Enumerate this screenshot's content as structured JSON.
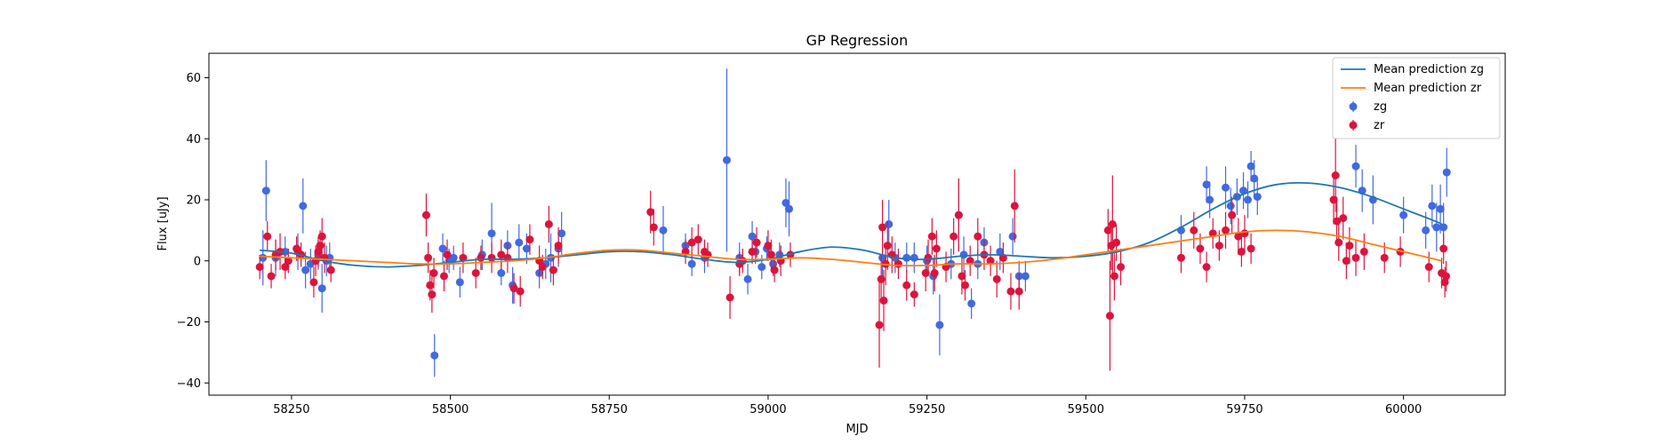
{
  "chart_data": {
    "type": "scatter",
    "title": "GP Regression",
    "xlabel": "MJD",
    "ylabel": "Flux [uJy]",
    "xlim": [
      58120,
      60160
    ],
    "ylim": [
      -44,
      68
    ],
    "x_ticks": [
      58250,
      58500,
      58750,
      59000,
      59250,
      59500,
      59750,
      60000
    ],
    "x_tick_labels": [
      "58250",
      "58500",
      "58750",
      "59000",
      "59250",
      "59500",
      "59750",
      "60000"
    ],
    "y_ticks": [
      -40,
      -20,
      0,
      20,
      40,
      60
    ],
    "y_tick_labels": [
      "−40",
      "−20",
      "0",
      "20",
      "40",
      "60"
    ],
    "grid": false,
    "legend_position": "top-right",
    "lines": [
      {
        "name": "Mean prediction zg",
        "color": "#1f77b4",
        "x": [
          58200,
          58250,
          58300,
          58350,
          58400,
          58450,
          58500,
          58550,
          58600,
          58650,
          58700,
          58750,
          58800,
          58850,
          58900,
          58950,
          59000,
          59050,
          59100,
          59150,
          59200,
          59250,
          59300,
          59350,
          59400,
          59450,
          59500,
          59550,
          59600,
          59650,
          59700,
          59750,
          59800,
          59850,
          59900,
          59950,
          60000,
          60050,
          60060
        ],
        "y": [
          3.5,
          2.5,
          0.0,
          -1.5,
          -2.0,
          -1.5,
          -0.5,
          0.5,
          0.5,
          1.0,
          2.0,
          3.0,
          3.0,
          2.0,
          0.5,
          -0.5,
          0.5,
          3.0,
          4.5,
          3.5,
          1.0,
          0.5,
          1.5,
          2.0,
          1.5,
          1.0,
          1.5,
          3.0,
          6.0,
          11.0,
          17.0,
          22.0,
          25.0,
          25.5,
          24.0,
          21.0,
          17.0,
          13.0,
          12.0
        ]
      },
      {
        "name": "Mean prediction zr",
        "color": "#ff7f0e",
        "x": [
          58200,
          58250,
          58300,
          58350,
          58400,
          58450,
          58500,
          58550,
          58600,
          58650,
          58700,
          58750,
          58800,
          58850,
          58900,
          58950,
          59000,
          59050,
          59100,
          59150,
          59200,
          59250,
          59300,
          59350,
          59400,
          59450,
          59500,
          59550,
          59600,
          59650,
          59700,
          59750,
          59800,
          59850,
          59900,
          59950,
          60000,
          60050,
          60060
        ],
        "y": [
          1.5,
          1.0,
          0.5,
          0.0,
          -0.5,
          -1.0,
          -1.0,
          -0.5,
          0.0,
          1.0,
          2.5,
          3.5,
          3.5,
          2.5,
          1.5,
          0.5,
          0.5,
          1.0,
          0.5,
          -0.5,
          -1.5,
          -1.5,
          -1.0,
          -1.0,
          -0.5,
          0.5,
          2.0,
          3.5,
          5.0,
          6.5,
          8.0,
          9.5,
          10.0,
          9.5,
          8.0,
          5.5,
          3.0,
          0.5,
          0.0
        ]
      }
    ],
    "series": [
      {
        "name": "zg",
        "color": "#4169e1",
        "points": [
          [
            58205,
            1,
            9
          ],
          [
            58210,
            23,
            10
          ],
          [
            58225,
            1,
            6
          ],
          [
            58240,
            3,
            5
          ],
          [
            58260,
            3,
            6
          ],
          [
            58268,
            18,
            9
          ],
          [
            58272,
            -3,
            6
          ],
          [
            58280,
            -1,
            5
          ],
          [
            58292,
            2,
            5
          ],
          [
            58298,
            -9,
            8
          ],
          [
            58305,
            0,
            5
          ],
          [
            58310,
            1,
            5
          ],
          [
            58475,
            -31,
            7
          ],
          [
            58488,
            4,
            5
          ],
          [
            58498,
            0,
            4
          ],
          [
            58505,
            1,
            4
          ],
          [
            58515,
            -7,
            5
          ],
          [
            58550,
            2,
            5
          ],
          [
            58565,
            9,
            10
          ],
          [
            58580,
            -4,
            4
          ],
          [
            58590,
            5,
            5
          ],
          [
            58598,
            -8,
            6
          ],
          [
            58608,
            6,
            6
          ],
          [
            58620,
            4,
            5
          ],
          [
            58640,
            -4,
            5
          ],
          [
            58650,
            -1,
            5
          ],
          [
            58658,
            1,
            8
          ],
          [
            58670,
            4,
            6
          ],
          [
            58675,
            9,
            7
          ],
          [
            58835,
            10,
            8
          ],
          [
            58870,
            5,
            4
          ],
          [
            58880,
            -1,
            4
          ],
          [
            58900,
            1,
            5
          ],
          [
            58935,
            33,
            30
          ],
          [
            58955,
            1,
            5
          ],
          [
            58968,
            -6,
            5
          ],
          [
            58975,
            8,
            5
          ],
          [
            58980,
            3,
            4
          ],
          [
            58990,
            -2,
            4
          ],
          [
            58998,
            4,
            4
          ],
          [
            59008,
            -1,
            4
          ],
          [
            59018,
            2,
            4
          ],
          [
            59028,
            19,
            8
          ],
          [
            59033,
            17,
            9
          ],
          [
            59180,
            1,
            8
          ],
          [
            59190,
            12,
            8
          ],
          [
            59200,
            1,
            5
          ],
          [
            59218,
            1,
            5
          ],
          [
            59230,
            1,
            5
          ],
          [
            59250,
            0,
            5
          ],
          [
            59260,
            -5,
            6
          ],
          [
            59270,
            -21,
            10
          ],
          [
            59288,
            -1,
            5
          ],
          [
            59300,
            15,
            12
          ],
          [
            59308,
            2,
            6
          ],
          [
            59320,
            -14,
            5
          ],
          [
            59330,
            -1,
            5
          ],
          [
            59340,
            6,
            5
          ],
          [
            59365,
            3,
            6
          ],
          [
            59385,
            8,
            6
          ],
          [
            59395,
            -5,
            5
          ],
          [
            59405,
            -5,
            5
          ],
          [
            59650,
            10,
            5
          ],
          [
            59690,
            25,
            6
          ],
          [
            59695,
            20,
            6
          ],
          [
            59720,
            24,
            7
          ],
          [
            59728,
            18,
            6
          ],
          [
            59738,
            21,
            6
          ],
          [
            59748,
            23,
            6
          ],
          [
            59755,
            20,
            6
          ],
          [
            59760,
            31,
            5
          ],
          [
            59765,
            27,
            6
          ],
          [
            59770,
            21,
            6
          ],
          [
            59925,
            31,
            7
          ],
          [
            59935,
            23,
            7
          ],
          [
            59952,
            20,
            8
          ],
          [
            60000,
            15,
            6
          ],
          [
            60035,
            10,
            6
          ],
          [
            60045,
            18,
            7
          ],
          [
            60052,
            11,
            8
          ],
          [
            60058,
            17,
            8
          ],
          [
            60063,
            11,
            8
          ],
          [
            60068,
            29,
            8
          ]
        ]
      },
      {
        "name": "zr",
        "color": "#dc143c",
        "points": [
          [
            58200,
            -2,
            4
          ],
          [
            58212,
            8,
            5
          ],
          [
            58218,
            -5,
            4
          ],
          [
            58225,
            2,
            5
          ],
          [
            58232,
            3,
            6
          ],
          [
            58240,
            -2,
            4
          ],
          [
            58245,
            0,
            4
          ],
          [
            58258,
            4,
            4
          ],
          [
            58265,
            2,
            4
          ],
          [
            58285,
            -7,
            5
          ],
          [
            58288,
            0,
            5
          ],
          [
            58292,
            3,
            5
          ],
          [
            58295,
            5,
            5
          ],
          [
            58298,
            8,
            6
          ],
          [
            58302,
            1,
            5
          ],
          [
            58312,
            -3,
            4
          ],
          [
            58462,
            15,
            7
          ],
          [
            58465,
            1,
            5
          ],
          [
            58468,
            -8,
            5
          ],
          [
            58471,
            -11,
            6
          ],
          [
            58474,
            -4,
            5
          ],
          [
            58490,
            -5,
            5
          ],
          [
            58495,
            2,
            5
          ],
          [
            58520,
            1,
            5
          ],
          [
            58540,
            -4,
            5
          ],
          [
            58548,
            1,
            4
          ],
          [
            58565,
            1,
            5
          ],
          [
            58580,
            2,
            5
          ],
          [
            58590,
            1,
            5
          ],
          [
            58600,
            -9,
            5
          ],
          [
            58610,
            -10,
            5
          ],
          [
            58625,
            7,
            5
          ],
          [
            58640,
            0,
            5
          ],
          [
            58645,
            -2,
            4
          ],
          [
            58655,
            12,
            6
          ],
          [
            58662,
            -3,
            5
          ],
          [
            58670,
            5,
            6
          ],
          [
            58815,
            16,
            7
          ],
          [
            58820,
            11,
            6
          ],
          [
            58870,
            3,
            4
          ],
          [
            58880,
            6,
            5
          ],
          [
            58890,
            7,
            5
          ],
          [
            58900,
            3,
            4
          ],
          [
            58905,
            2,
            4
          ],
          [
            58940,
            -12,
            7
          ],
          [
            58955,
            -1,
            4
          ],
          [
            58960,
            0,
            4
          ],
          [
            58975,
            3,
            4
          ],
          [
            58982,
            6,
            5
          ],
          [
            59000,
            5,
            5
          ],
          [
            59005,
            2,
            5
          ],
          [
            59010,
            -3,
            4
          ],
          [
            59020,
            0,
            5
          ],
          [
            59035,
            2,
            4
          ],
          [
            59175,
            -21,
            14
          ],
          [
            59178,
            -6,
            8
          ],
          [
            59180,
            11,
            9
          ],
          [
            59182,
            -13,
            10
          ],
          [
            59185,
            -1,
            7
          ],
          [
            59188,
            5,
            8
          ],
          [
            59195,
            2,
            6
          ],
          [
            59205,
            -1,
            5
          ],
          [
            59218,
            -8,
            5
          ],
          [
            59230,
            -11,
            4
          ],
          [
            59248,
            -4,
            6
          ],
          [
            59252,
            1,
            6
          ],
          [
            59258,
            8,
            6
          ],
          [
            59262,
            -4,
            6
          ],
          [
            59265,
            4,
            6
          ],
          [
            59280,
            -2,
            5
          ],
          [
            59292,
            8,
            6
          ],
          [
            59300,
            15,
            12
          ],
          [
            59305,
            -5,
            6
          ],
          [
            59310,
            -8,
            5
          ],
          [
            59318,
            0,
            5
          ],
          [
            59330,
            8,
            6
          ],
          [
            59340,
            2,
            5
          ],
          [
            59350,
            0,
            5
          ],
          [
            59360,
            -6,
            6
          ],
          [
            59370,
            1,
            5
          ],
          [
            59382,
            -10,
            6
          ],
          [
            59388,
            18,
            12
          ],
          [
            59395,
            -10,
            6
          ],
          [
            59535,
            10,
            7
          ],
          [
            59538,
            -18,
            18
          ],
          [
            59540,
            5,
            8
          ],
          [
            59542,
            12,
            16
          ],
          [
            59545,
            -5,
            8
          ],
          [
            59548,
            6,
            6
          ],
          [
            59555,
            -2,
            6
          ],
          [
            59650,
            1,
            5
          ],
          [
            59670,
            10,
            6
          ],
          [
            59680,
            4,
            5
          ],
          [
            59690,
            -2,
            5
          ],
          [
            59700,
            9,
            5
          ],
          [
            59710,
            5,
            5
          ],
          [
            59720,
            10,
            6
          ],
          [
            59730,
            15,
            6
          ],
          [
            59740,
            8,
            6
          ],
          [
            59745,
            3,
            5
          ],
          [
            59750,
            9,
            6
          ],
          [
            59760,
            4,
            5
          ],
          [
            59890,
            20,
            8
          ],
          [
            59893,
            28,
            12
          ],
          [
            59895,
            13,
            8
          ],
          [
            59898,
            6,
            6
          ],
          [
            59905,
            14,
            7
          ],
          [
            59910,
            0,
            6
          ],
          [
            59915,
            5,
            6
          ],
          [
            59925,
            1,
            6
          ],
          [
            59938,
            3,
            6
          ],
          [
            59970,
            1,
            5
          ],
          [
            59995,
            3,
            5
          ],
          [
            60040,
            -2,
            5
          ],
          [
            60060,
            -4,
            5
          ],
          [
            60063,
            4,
            5
          ],
          [
            60065,
            -7,
            5
          ],
          [
            60067,
            -5,
            5
          ]
        ]
      }
    ]
  }
}
